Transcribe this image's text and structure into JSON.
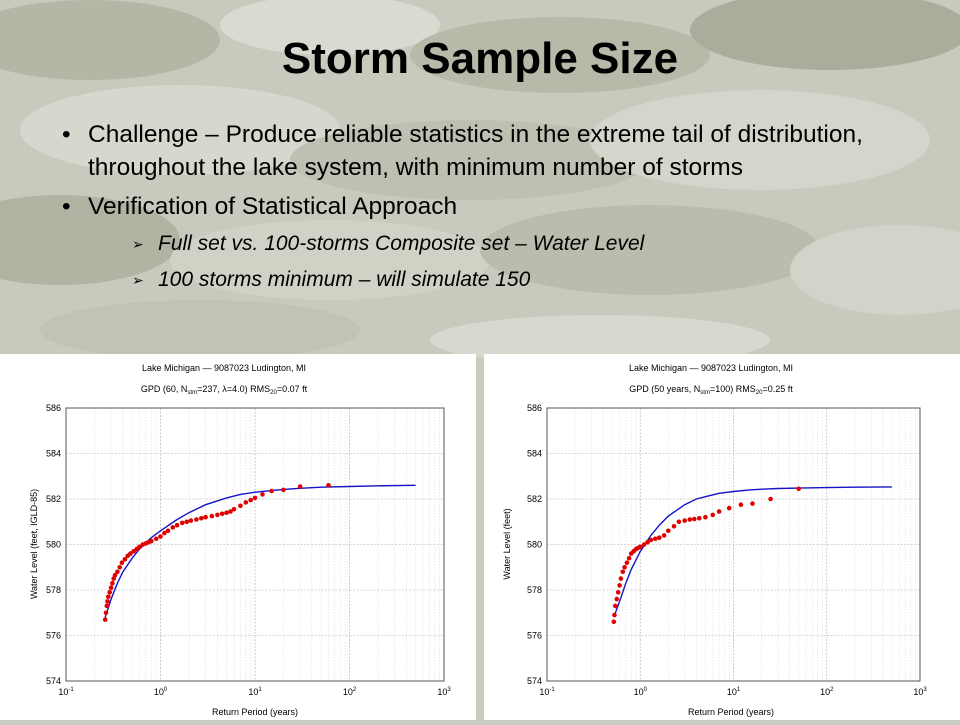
{
  "slide": {
    "title": "Storm Sample Size",
    "bullets": [
      {
        "text": "Challenge – Produce reliable statistics in the extreme tail of distribution, throughout  the lake system, with minimum number of storms"
      },
      {
        "text": "Verification of Statistical Approach"
      }
    ],
    "subbullets": [
      "Full set vs. 100-storms Composite set – Water Level",
      "100 storms minimum – will simulate 150"
    ]
  },
  "colors": {
    "fit_line": "#1414c8",
    "data_points": "#e00000"
  },
  "chart_data": [
    {
      "type": "scatter",
      "title": "Lake Michigan — 9087023 Ludington, MI",
      "subtitle_parts": [
        "GPD (60, N",
        "stm",
        "=237, ",
        "λ",
        "=4.0)    RMS",
        "20",
        "=0.07 ft"
      ],
      "xlabel": "Return Period (years)",
      "ylabel": "Water Level (feet, IGLD-85)",
      "xscale": "log",
      "xlim": [
        0.1,
        1000
      ],
      "ylim": [
        574,
        586
      ],
      "x_ticks": [
        0.1,
        1,
        10,
        100,
        1000
      ],
      "x_tick_labels": [
        "10",
        "10",
        "10",
        "10",
        "10"
      ],
      "x_tick_exponents": [
        "-1",
        "0",
        "1",
        "2",
        "3"
      ],
      "y_ticks": [
        574,
        576,
        578,
        580,
        582,
        584,
        586
      ],
      "y_tick_labels": [
        "574",
        "576",
        "578",
        "580",
        "582",
        "584",
        "586"
      ],
      "grid": true,
      "series": [
        {
          "kind": "line",
          "x": [
            0.26,
            0.3,
            0.35,
            0.4,
            0.5,
            0.6,
            0.8,
            1,
            1.5,
            2,
            3,
            5,
            7,
            10,
            20,
            30,
            50,
            100,
            200,
            500
          ],
          "y": [
            576.8,
            577.6,
            578.3,
            578.8,
            579.4,
            579.8,
            580.3,
            580.6,
            581.1,
            581.4,
            581.75,
            582.05,
            582.2,
            582.3,
            582.42,
            582.47,
            582.52,
            582.55,
            582.58,
            582.6
          ]
        },
        {
          "kind": "scatter",
          "x": [
            0.26,
            0.265,
            0.27,
            0.275,
            0.28,
            0.29,
            0.3,
            0.31,
            0.32,
            0.33,
            0.35,
            0.37,
            0.39,
            0.42,
            0.45,
            0.48,
            0.52,
            0.56,
            0.6,
            0.65,
            0.7,
            0.75,
            0.8,
            0.9,
            1.0,
            1.1,
            1.2,
            1.35,
            1.5,
            1.7,
            1.9,
            2.1,
            2.4,
            2.7,
            3.0,
            3.5,
            4.0,
            4.5,
            5.0,
            5.5,
            6.0,
            7.0,
            8.0,
            9.0,
            10,
            12,
            15,
            20,
            30,
            60
          ],
          "y": [
            576.7,
            577.0,
            577.3,
            577.5,
            577.7,
            577.9,
            578.1,
            578.3,
            578.5,
            578.65,
            578.8,
            579.0,
            579.2,
            579.35,
            579.5,
            579.6,
            579.7,
            579.8,
            579.9,
            580.0,
            580.05,
            580.1,
            580.15,
            580.25,
            580.35,
            580.5,
            580.6,
            580.75,
            580.85,
            580.95,
            581.0,
            581.05,
            581.1,
            581.15,
            581.2,
            581.25,
            581.3,
            581.35,
            581.4,
            581.45,
            581.55,
            581.7,
            581.85,
            581.95,
            582.05,
            582.2,
            582.35,
            582.4,
            582.55,
            582.6
          ]
        }
      ]
    },
    {
      "type": "scatter",
      "title": "Lake Michigan — 9087023 Ludington, MI",
      "subtitle_parts": [
        "GPD (50 years, N",
        "stm",
        "=100)    RMS",
        "20",
        "=0.25 ft"
      ],
      "xlabel": "Return Period (years)",
      "ylabel": "Water Level (feet)",
      "xscale": "log",
      "xlim": [
        0.1,
        1000
      ],
      "ylim": [
        574,
        586
      ],
      "x_ticks": [
        0.1,
        1,
        10,
        100,
        1000
      ],
      "x_tick_labels": [
        "10",
        "10",
        "10",
        "10",
        "10"
      ],
      "x_tick_exponents": [
        "-1",
        "0",
        "1",
        "2",
        "3"
      ],
      "y_ticks": [
        574,
        576,
        578,
        580,
        582,
        584,
        586
      ],
      "y_tick_labels": [
        "574",
        "576",
        "578",
        "580",
        "582",
        "584",
        "586"
      ],
      "grid": true,
      "series": [
        {
          "kind": "line",
          "x": [
            0.52,
            0.6,
            0.7,
            0.8,
            1.0,
            1.3,
            1.6,
            2,
            3,
            4,
            5,
            7,
            10,
            15,
            20,
            30,
            50,
            100,
            200,
            500
          ],
          "y": [
            576.8,
            577.5,
            578.3,
            578.9,
            579.7,
            580.4,
            580.85,
            581.25,
            581.75,
            582.0,
            582.1,
            582.25,
            582.33,
            582.4,
            582.43,
            582.46,
            582.48,
            582.5,
            582.52,
            582.53
          ]
        },
        {
          "kind": "scatter",
          "x": [
            0.52,
            0.53,
            0.54,
            0.56,
            0.58,
            0.6,
            0.62,
            0.65,
            0.68,
            0.72,
            0.76,
            0.8,
            0.85,
            0.9,
            0.95,
            1.0,
            1.1,
            1.2,
            1.3,
            1.45,
            1.6,
            1.8,
            2.0,
            2.3,
            2.6,
            3.0,
            3.4,
            3.8,
            4.3,
            5.0,
            6.0,
            7.0,
            9.0,
            12,
            16,
            25,
            50
          ],
          "y": [
            576.6,
            576.9,
            577.3,
            577.6,
            577.9,
            578.2,
            578.5,
            578.8,
            579.0,
            579.2,
            579.4,
            579.6,
            579.7,
            579.8,
            579.85,
            579.9,
            580.0,
            580.1,
            580.2,
            580.25,
            580.3,
            580.4,
            580.6,
            580.8,
            581.0,
            581.05,
            581.1,
            581.12,
            581.15,
            581.2,
            581.3,
            581.45,
            581.6,
            581.75,
            581.8,
            582.0,
            582.45
          ]
        }
      ]
    }
  ]
}
